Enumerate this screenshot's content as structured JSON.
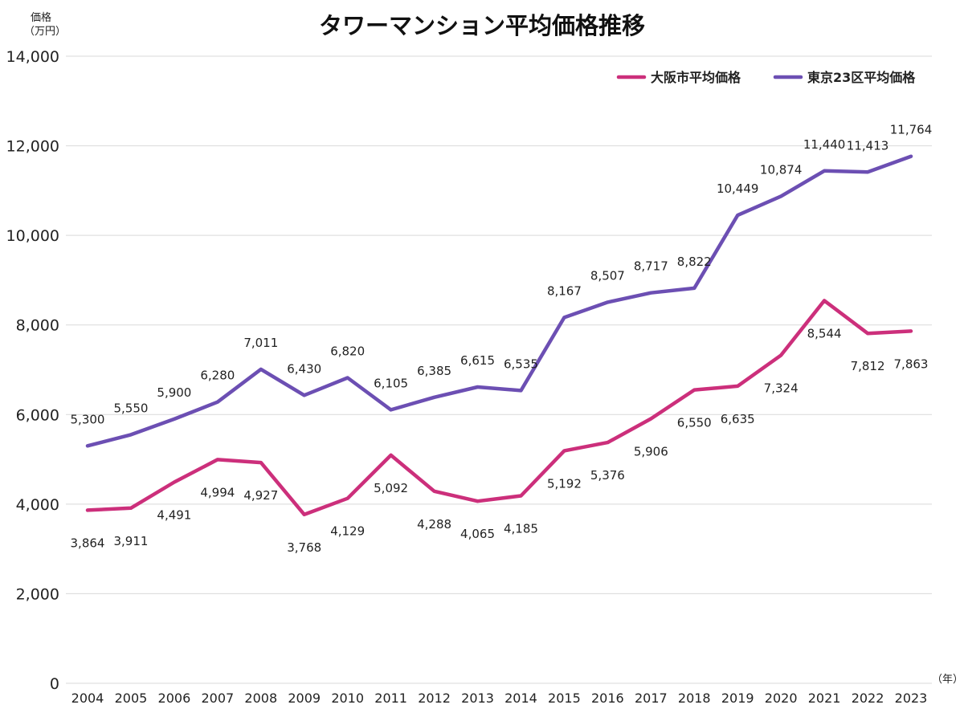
{
  "chart_data": {
    "type": "line",
    "title": "タワーマンション平均価格推移",
    "ylabel_line1": "価格",
    "ylabel_line2": "（万円）",
    "xlabel": "（年）",
    "ylim": [
      0,
      14000
    ],
    "yticks": [
      0,
      2000,
      4000,
      6000,
      8000,
      10000,
      12000,
      14000
    ],
    "ytick_labels": [
      "0",
      "2,000",
      "4,000",
      "6,000",
      "8,000",
      "10,000",
      "12,000",
      "14,000"
    ],
    "grid": true,
    "legend_position": "top-right",
    "x": [
      "2004",
      "2005",
      "2006",
      "2007",
      "2008",
      "2009",
      "2010",
      "2011",
      "2012",
      "2013",
      "2014",
      "2015",
      "2016",
      "2017",
      "2018",
      "2019",
      "2020",
      "2021",
      "2022",
      "2023"
    ],
    "series": [
      {
        "name": "大阪市平均価格",
        "color": "#cc2f7b",
        "values": [
          3864,
          3911,
          4491,
          4994,
          4927,
          3768,
          4129,
          5092,
          4288,
          4065,
          4185,
          5192,
          5376,
          5906,
          6550,
          6635,
          7324,
          8544,
          7812,
          7863
        ],
        "labels": [
          "3,864",
          "3,911",
          "4,491",
          "4,994",
          "4,927",
          "3,768",
          "4,129",
          "5,092",
          "4,288",
          "4,065",
          "4,185",
          "5,192",
          "5,376",
          "5,906",
          "6,550",
          "6,635",
          "7,324",
          "8,544",
          "7,812",
          "7,863"
        ],
        "label_position": "below"
      },
      {
        "name": "東京23区平均価格",
        "color": "#6c4fb3",
        "values": [
          5300,
          5550,
          5900,
          6280,
          7011,
          6430,
          6820,
          6105,
          6385,
          6615,
          6535,
          8167,
          8507,
          8717,
          8822,
          10449,
          10874,
          11440,
          11413,
          11764
        ],
        "labels": [
          "5,300",
          "5,550",
          "5,900",
          "6,280",
          "7,011",
          "6,430",
          "6,820",
          "6,105",
          "6,385",
          "6,615",
          "6,535",
          "8,167",
          "8,507",
          "8,717",
          "8,822",
          "10,449",
          "10,874",
          "11,440",
          "11,413",
          "11,764"
        ],
        "label_position": "above"
      }
    ]
  }
}
